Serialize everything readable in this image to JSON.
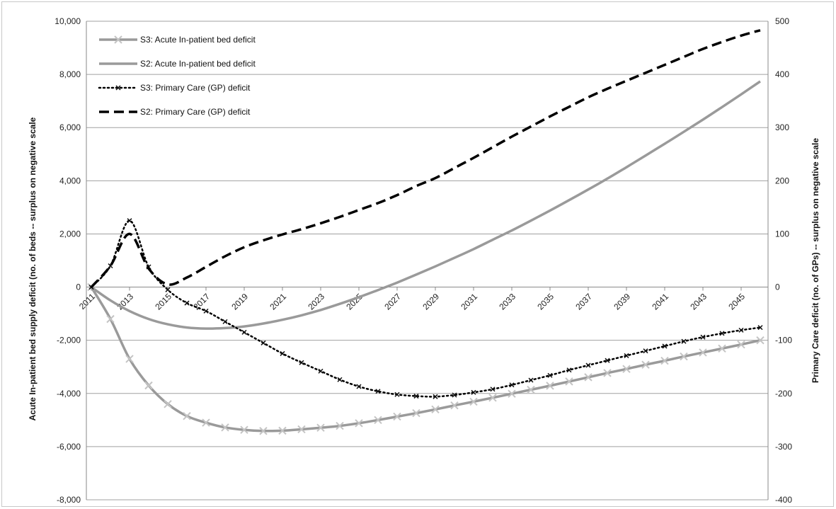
{
  "chart_data": {
    "type": "line",
    "title": "",
    "ylabel": "Acute In-patient bed supply deficit (no. of beds -- surplus on negative scale",
    "y2label": "Primary Care deficit (no. of GPs) -- surplus on negative scale",
    "xlabel": "",
    "ylim": [
      -8000,
      10000
    ],
    "y2lim": [
      -400,
      500
    ],
    "yticks": [
      "10,000",
      "8,000",
      "6,000",
      "4,000",
      "2,000",
      "0",
      "-2,000",
      "-4,000",
      "-6,000",
      "-8,000"
    ],
    "y2ticks": [
      "500",
      "400",
      "300",
      "200",
      "100",
      "0",
      "-100",
      "-200",
      "-300",
      "-400"
    ],
    "xlim": [
      2011,
      2046
    ],
    "xticks": [
      "2011",
      "2013",
      "2015",
      "2017",
      "2019",
      "2021",
      "2023",
      "2025",
      "2027",
      "2029",
      "2031",
      "2033",
      "2035",
      "2037",
      "2039",
      "2041",
      "2043",
      "2045"
    ],
    "grid": true,
    "legend_position": "top-left",
    "series": [
      {
        "name": "S3: Acute In-patient bed deficit",
        "axis": "left",
        "color": "#9a9a9a",
        "style": "solid-x",
        "x": [
          2011,
          2012,
          2013,
          2014,
          2015,
          2016,
          2017,
          2018,
          2019,
          2020,
          2021,
          2022,
          2023,
          2024,
          2025,
          2026,
          2027,
          2028,
          2029,
          2030,
          2031,
          2032,
          2033,
          2034,
          2035,
          2036,
          2037,
          2038,
          2039,
          2040,
          2041,
          2042,
          2043,
          2044,
          2045,
          2046
        ],
        "y": [
          0,
          -1200,
          -2700,
          -3700,
          -4400,
          -4850,
          -5100,
          -5280,
          -5370,
          -5410,
          -5400,
          -5350,
          -5290,
          -5220,
          -5120,
          -5000,
          -4870,
          -4740,
          -4600,
          -4450,
          -4310,
          -4160,
          -4010,
          -3860,
          -3710,
          -3550,
          -3390,
          -3230,
          -3080,
          -2920,
          -2770,
          -2610,
          -2460,
          -2310,
          -2160,
          -2000
        ]
      },
      {
        "name": "S2: Acute In-patient bed deficit",
        "axis": "left",
        "color": "#9a9a9a",
        "style": "solid",
        "x": [
          2011,
          2012,
          2013,
          2014,
          2015,
          2016,
          2017,
          2018,
          2019,
          2020,
          2021,
          2022,
          2023,
          2024,
          2025,
          2026,
          2027,
          2028,
          2029,
          2030,
          2031,
          2032,
          2033,
          2034,
          2035,
          2036,
          2037,
          2038,
          2039,
          2040,
          2041,
          2042,
          2043,
          2044,
          2045,
          2046
        ],
        "y": [
          0,
          -500,
          -900,
          -1200,
          -1400,
          -1520,
          -1560,
          -1540,
          -1480,
          -1370,
          -1230,
          -1060,
          -860,
          -630,
          -380,
          -110,
          170,
          470,
          780,
          1100,
          1430,
          1780,
          2130,
          2500,
          2880,
          3270,
          3670,
          4080,
          4510,
          4950,
          5390,
          5840,
          6300,
          6770,
          7250,
          7740
        ]
      },
      {
        "name": "S3: Primary Care (GP) deficit",
        "axis": "right",
        "color": "#000000",
        "style": "dotted-x",
        "x": [
          2011,
          2012,
          2013,
          2014,
          2015,
          2016,
          2017,
          2018,
          2019,
          2020,
          2021,
          2022,
          2023,
          2024,
          2025,
          2026,
          2027,
          2028,
          2029,
          2030,
          2031,
          2032,
          2033,
          2034,
          2035,
          2036,
          2037,
          2038,
          2039,
          2040,
          2041,
          2042,
          2043,
          2044,
          2045,
          2046
        ],
        "y": [
          0,
          40,
          125,
          38,
          -5,
          -30,
          -45,
          -65,
          -85,
          -105,
          -125,
          -142,
          -158,
          -174,
          -187,
          -196,
          -202,
          -205,
          -206,
          -203,
          -198,
          -192,
          -184,
          -175,
          -166,
          -156,
          -147,
          -138,
          -129,
          -120,
          -111,
          -102,
          -94,
          -87,
          -81,
          -76
        ]
      },
      {
        "name": "S2: Primary Care (GP) deficit",
        "axis": "right",
        "color": "#000000",
        "style": "dashed",
        "x": [
          2011,
          2012,
          2013,
          2014,
          2015,
          2016,
          2017,
          2018,
          2019,
          2020,
          2021,
          2022,
          2023,
          2024,
          2025,
          2026,
          2027,
          2028,
          2029,
          2030,
          2031,
          2032,
          2033,
          2034,
          2035,
          2036,
          2037,
          2038,
          2039,
          2040,
          2041,
          2042,
          2043,
          2044,
          2045,
          2046
        ],
        "y": [
          0,
          40,
          100,
          35,
          5,
          18,
          38,
          58,
          75,
          88,
          99,
          109,
          120,
          132,
          145,
          158,
          173,
          190,
          205,
          224,
          243,
          263,
          283,
          302,
          321,
          339,
          357,
          373,
          388,
          403,
          418,
          433,
          448,
          461,
          473,
          483
        ]
      }
    ]
  }
}
